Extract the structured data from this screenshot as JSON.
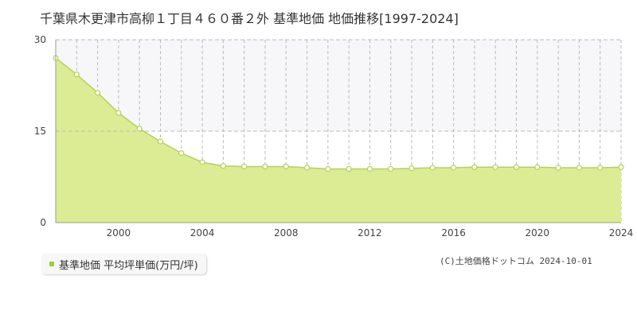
{
  "title": "千葉県木更津市高柳１丁目４６０番２外 基準地価 地価推移[1997-2024]",
  "legend": {
    "label": "基準地価 平均坪単価(万円/坪)"
  },
  "copyright": "(C)土地価格ドットコム 2024-10-01",
  "colors": {
    "area_fill": "#dcec94",
    "line": "#b5d44a",
    "point_fill": "#ffffff",
    "legend_swatch": "#a5c83a",
    "grid": "#bbbbbb",
    "axis": "#999999",
    "upper_band": "#f7f7f9"
  },
  "chart_data": {
    "type": "area",
    "title": "千葉県木更津市高柳１丁目４６０番２外 基準地価 地価推移[1997-2024]",
    "xlabel": "",
    "ylabel": "",
    "xlim": [
      1997,
      2024
    ],
    "ylim": [
      0,
      30
    ],
    "x_ticks": [
      2000,
      2004,
      2008,
      2012,
      2016,
      2020,
      2024
    ],
    "y_ticks": [
      0,
      15,
      30
    ],
    "grid": true,
    "legend_position": "bottom-left",
    "series": [
      {
        "name": "基準地価 平均坪単価(万円/坪)",
        "x": [
          1997,
          1998,
          1999,
          2000,
          2001,
          2002,
          2003,
          2004,
          2005,
          2006,
          2007,
          2008,
          2009,
          2010,
          2011,
          2012,
          2013,
          2014,
          2015,
          2016,
          2017,
          2018,
          2019,
          2020,
          2021,
          2022,
          2023,
          2024
        ],
        "values": [
          27.0,
          24.3,
          21.3,
          18.0,
          15.4,
          13.3,
          11.4,
          9.9,
          9.3,
          9.2,
          9.2,
          9.2,
          9.0,
          8.8,
          8.8,
          8.8,
          8.8,
          8.9,
          9.0,
          9.0,
          9.1,
          9.1,
          9.1,
          9.1,
          9.0,
          9.0,
          9.0,
          9.1
        ]
      }
    ]
  }
}
